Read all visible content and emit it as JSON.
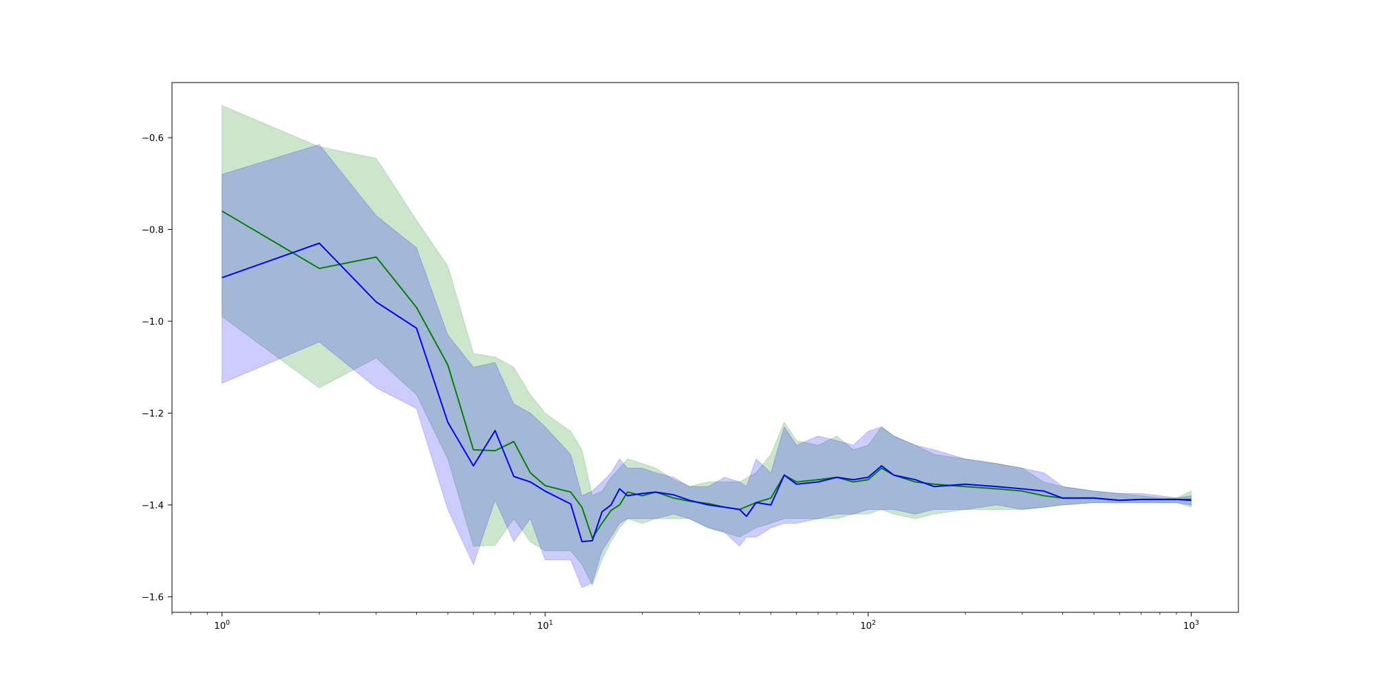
{
  "chart_data": {
    "type": "line",
    "title": "",
    "xlabel": "",
    "ylabel": "",
    "xscale": "log",
    "xlim": [
      0.7,
      1400
    ],
    "ylim": [
      -1.634,
      -0.48
    ],
    "grid": false,
    "x_ticks": [
      {
        "base": "10",
        "exp": "0",
        "value": 1
      },
      {
        "base": "10",
        "exp": "1",
        "value": 10
      },
      {
        "base": "10",
        "exp": "2",
        "value": 100
      },
      {
        "base": "10",
        "exp": "3",
        "value": 1000
      }
    ],
    "y_ticks": [
      {
        "label": "−0.6",
        "value": -0.6
      },
      {
        "label": "−0.8",
        "value": -0.8
      },
      {
        "label": "−1.0",
        "value": -1.0
      },
      {
        "label": "−1.2",
        "value": -1.2
      },
      {
        "label": "−1.4",
        "value": -1.4
      },
      {
        "label": "−1.6",
        "value": -1.6
      }
    ],
    "series": [
      {
        "color": "#008000",
        "band_color": "#008000",
        "band_opacity": 0.2,
        "x": [
          1,
          2,
          3,
          4,
          5,
          6,
          7,
          8,
          9,
          10,
          12,
          13,
          14,
          15,
          16,
          17,
          18,
          20,
          22,
          25,
          28,
          32,
          36,
          40,
          45,
          50,
          55,
          60,
          70,
          80,
          90,
          100,
          110,
          120,
          140,
          160,
          200,
          250,
          300,
          350,
          400,
          500,
          600,
          700,
          800,
          900,
          1000
        ],
        "y": [
          -0.76,
          -0.885,
          -0.86,
          -0.97,
          -1.095,
          -1.28,
          -1.282,
          -1.262,
          -1.33,
          -1.358,
          -1.372,
          -1.405,
          -1.472,
          -1.44,
          -1.412,
          -1.4,
          -1.372,
          -1.38,
          -1.372,
          -1.385,
          -1.392,
          -1.397,
          -1.405,
          -1.41,
          -1.395,
          -1.385,
          -1.335,
          -1.35,
          -1.345,
          -1.34,
          -1.35,
          -1.345,
          -1.32,
          -1.335,
          -1.35,
          -1.355,
          -1.36,
          -1.365,
          -1.37,
          -1.38,
          -1.385,
          -1.385,
          -1.39,
          -1.388,
          -1.388,
          -1.388,
          -1.388
        ],
        "upper": [
          -0.53,
          -0.62,
          -0.645,
          -0.78,
          -0.88,
          -1.07,
          -1.078,
          -1.1,
          -1.16,
          -1.2,
          -1.24,
          -1.28,
          -1.38,
          -1.37,
          -1.34,
          -1.32,
          -1.3,
          -1.31,
          -1.32,
          -1.345,
          -1.36,
          -1.35,
          -1.35,
          -1.35,
          -1.33,
          -1.29,
          -1.22,
          -1.26,
          -1.27,
          -1.25,
          -1.28,
          -1.27,
          -1.23,
          -1.25,
          -1.27,
          -1.29,
          -1.3,
          -1.31,
          -1.32,
          -1.35,
          -1.36,
          -1.37,
          -1.375,
          -1.38,
          -1.385,
          -1.385,
          -1.37
        ],
        "lower": [
          -0.99,
          -1.145,
          -1.08,
          -1.16,
          -1.3,
          -1.49,
          -1.488,
          -1.43,
          -1.48,
          -1.5,
          -1.5,
          -1.53,
          -1.575,
          -1.52,
          -1.48,
          -1.45,
          -1.43,
          -1.44,
          -1.43,
          -1.43,
          -1.43,
          -1.45,
          -1.46,
          -1.47,
          -1.45,
          -1.44,
          -1.43,
          -1.43,
          -1.43,
          -1.43,
          -1.42,
          -1.42,
          -1.41,
          -1.42,
          -1.43,
          -1.42,
          -1.41,
          -1.41,
          -1.41,
          -1.405,
          -1.4,
          -1.395,
          -1.395,
          -1.395,
          -1.395,
          -1.395,
          -1.405
        ]
      },
      {
        "color": "#0000ff",
        "band_color": "#0000ff",
        "band_opacity": 0.2,
        "x": [
          1,
          2,
          3,
          4,
          5,
          6,
          7,
          8,
          9,
          10,
          12,
          13,
          14,
          15,
          16,
          17,
          18,
          20,
          22,
          25,
          28,
          32,
          36,
          40,
          42,
          45,
          50,
          55,
          60,
          70,
          80,
          90,
          100,
          110,
          120,
          140,
          160,
          200,
          250,
          300,
          350,
          400,
          500,
          600,
          700,
          800,
          900,
          1000
        ],
        "y": [
          -0.905,
          -0.83,
          -0.958,
          -1.015,
          -1.22,
          -1.315,
          -1.238,
          -1.338,
          -1.35,
          -1.37,
          -1.398,
          -1.48,
          -1.478,
          -1.415,
          -1.4,
          -1.365,
          -1.38,
          -1.375,
          -1.372,
          -1.378,
          -1.39,
          -1.4,
          -1.405,
          -1.41,
          -1.425,
          -1.395,
          -1.4,
          -1.335,
          -1.355,
          -1.35,
          -1.34,
          -1.345,
          -1.34,
          -1.315,
          -1.335,
          -1.345,
          -1.36,
          -1.355,
          -1.36,
          -1.365,
          -1.37,
          -1.385,
          -1.385,
          -1.39,
          -1.388,
          -1.388,
          -1.388,
          -1.39
        ],
        "upper": [
          -0.68,
          -0.615,
          -0.77,
          -0.84,
          -1.03,
          -1.1,
          -1.09,
          -1.18,
          -1.2,
          -1.23,
          -1.29,
          -1.38,
          -1.37,
          -1.35,
          -1.33,
          -1.3,
          -1.32,
          -1.32,
          -1.33,
          -1.34,
          -1.36,
          -1.36,
          -1.34,
          -1.35,
          -1.36,
          -1.3,
          -1.33,
          -1.23,
          -1.27,
          -1.25,
          -1.26,
          -1.27,
          -1.24,
          -1.23,
          -1.25,
          -1.27,
          -1.28,
          -1.3,
          -1.31,
          -1.32,
          -1.33,
          -1.36,
          -1.37,
          -1.375,
          -1.375,
          -1.38,
          -1.385,
          -1.38
        ],
        "lower": [
          -1.135,
          -1.045,
          -1.145,
          -1.19,
          -1.41,
          -1.53,
          -1.39,
          -1.48,
          -1.43,
          -1.52,
          -1.52,
          -1.58,
          -1.57,
          -1.5,
          -1.47,
          -1.44,
          -1.43,
          -1.43,
          -1.43,
          -1.42,
          -1.43,
          -1.45,
          -1.46,
          -1.49,
          -1.47,
          -1.47,
          -1.45,
          -1.44,
          -1.44,
          -1.43,
          -1.42,
          -1.42,
          -1.41,
          -1.41,
          -1.41,
          -1.42,
          -1.41,
          -1.41,
          -1.4,
          -1.41,
          -1.405,
          -1.4,
          -1.395,
          -1.395,
          -1.395,
          -1.395,
          -1.395,
          -1.4
        ]
      }
    ]
  }
}
